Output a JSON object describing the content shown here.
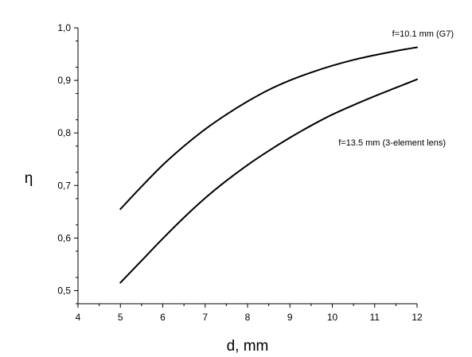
{
  "chart_data": {
    "type": "line",
    "xlabel": "d, mm",
    "ylabel": "η",
    "xlim": [
      4,
      12
    ],
    "ylim": [
      0.475,
      1.0
    ],
    "xticks": [
      4,
      5,
      6,
      7,
      8,
      9,
      10,
      11,
      12
    ],
    "xticklabels": [
      "4",
      "5",
      "6",
      "7",
      "8",
      "9",
      "10",
      "11",
      "12"
    ],
    "yticks": [
      0.5,
      0.6,
      0.7,
      0.8,
      0.9,
      1.0
    ],
    "yticklabels": [
      "0,5",
      "0,6",
      "0,7",
      "0,8",
      "0,9",
      "1,0"
    ],
    "grid": false,
    "series": [
      {
        "name": "f=10.1 mm (G7)",
        "x": [
          5,
          5.5,
          6,
          6.5,
          7,
          7.5,
          8,
          8.5,
          9,
          9.5,
          10,
          10.5,
          11,
          11.5,
          12
        ],
        "y": [
          0.655,
          0.698,
          0.739,
          0.775,
          0.807,
          0.835,
          0.86,
          0.882,
          0.9,
          0.915,
          0.928,
          0.939,
          0.948,
          0.956,
          0.963
        ]
      },
      {
        "name": "f=13.5 mm (3-element lens)",
        "x": [
          5,
          5.5,
          6,
          6.5,
          7,
          7.5,
          8,
          8.5,
          9,
          9.5,
          10,
          10.5,
          11,
          11.5,
          12
        ],
        "y": [
          0.515,
          0.557,
          0.599,
          0.639,
          0.676,
          0.709,
          0.739,
          0.766,
          0.791,
          0.814,
          0.835,
          0.853,
          0.87,
          0.886,
          0.902
        ]
      }
    ]
  }
}
